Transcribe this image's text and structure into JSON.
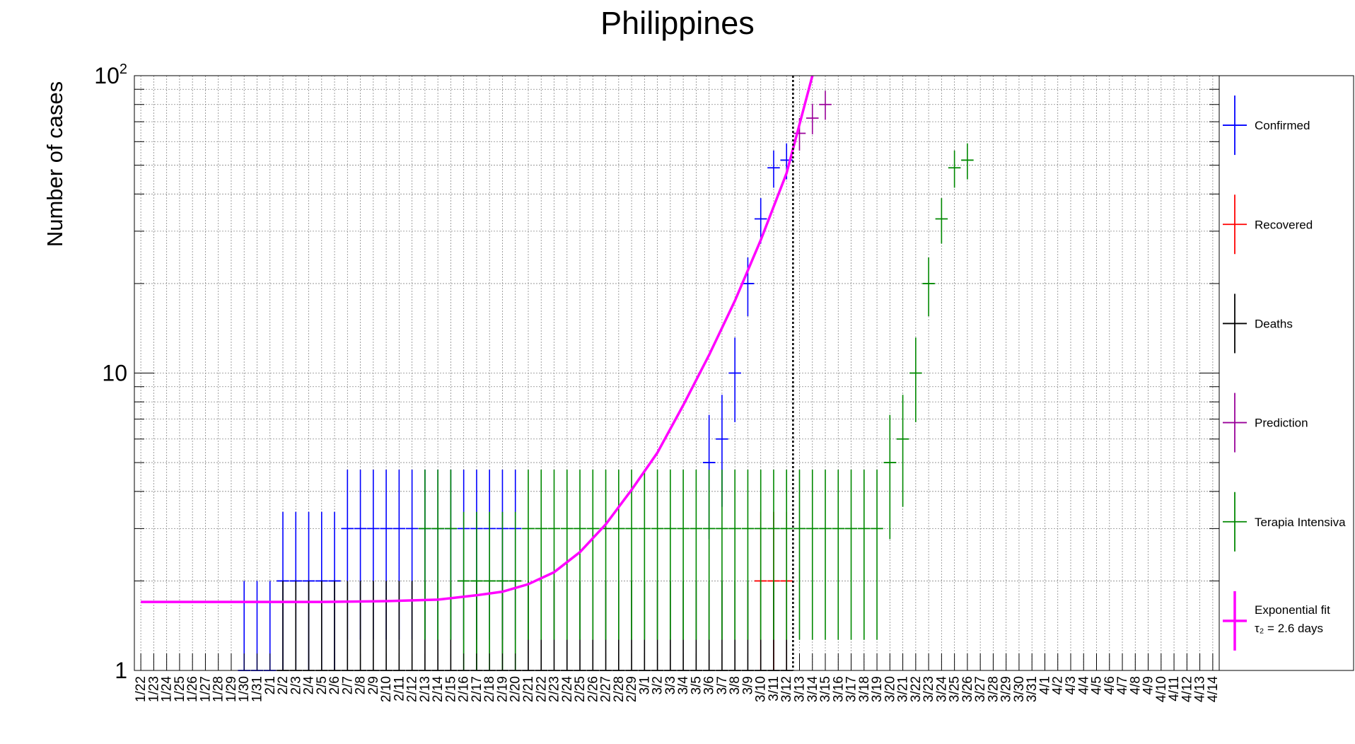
{
  "chart_data": {
    "type": "scatter",
    "title": "Philippines",
    "xlabel": "",
    "ylabel": "Number of cases",
    "yscale": "log",
    "ylim": [
      1,
      100
    ],
    "ytick_labels": [
      {
        "value": 1,
        "base": "1",
        "exp": ""
      },
      {
        "value": 10,
        "base": "10",
        "exp": ""
      },
      {
        "value": 100,
        "base": "10",
        "exp": "2"
      }
    ],
    "grid": true,
    "legend_placement": "right",
    "categories": [
      "1/22",
      "1/23",
      "1/24",
      "1/25",
      "1/26",
      "1/27",
      "1/28",
      "1/29",
      "1/30",
      "1/31",
      "2/1",
      "2/2",
      "2/3",
      "2/4",
      "2/5",
      "2/6",
      "2/7",
      "2/8",
      "2/9",
      "2/10",
      "2/11",
      "2/12",
      "2/13",
      "2/14",
      "2/15",
      "2/16",
      "2/17",
      "2/18",
      "2/19",
      "2/20",
      "2/21",
      "2/22",
      "2/23",
      "2/24",
      "2/25",
      "2/26",
      "2/27",
      "2/28",
      "2/29",
      "3/1",
      "3/2",
      "3/3",
      "3/4",
      "3/5",
      "3/6",
      "3/7",
      "3/8",
      "3/9",
      "3/10",
      "3/11",
      "3/12",
      "3/13",
      "3/14",
      "3/15",
      "3/16",
      "3/17",
      "3/18",
      "3/19",
      "3/20",
      "3/21",
      "3/22",
      "3/23",
      "3/24",
      "3/25",
      "3/26",
      "3/27",
      "3/28",
      "3/29",
      "3/30",
      "3/31",
      "4/1",
      "4/2",
      "4/3",
      "4/4",
      "4/5",
      "4/6",
      "4/7",
      "4/8",
      "4/9",
      "4/10",
      "4/11",
      "4/12",
      "4/13",
      "4/14"
    ],
    "vline": "3/12",
    "series": [
      {
        "name": "Confirmed",
        "color": "#0000ff",
        "x": [
          "1/30",
          "1/31",
          "2/1",
          "2/2",
          "2/3",
          "2/4",
          "2/5",
          "2/6",
          "2/7",
          "2/8",
          "2/9",
          "2/10",
          "2/11",
          "2/12",
          "2/13",
          "2/14",
          "2/15",
          "2/16",
          "2/17",
          "2/18",
          "2/19",
          "2/20",
          "3/6",
          "3/7",
          "3/8",
          "3/9",
          "3/10",
          "3/11",
          "3/12"
        ],
        "y": [
          1,
          1,
          1,
          2,
          2,
          2,
          2,
          2,
          3,
          3,
          3,
          3,
          3,
          3,
          3,
          3,
          3,
          3,
          3,
          3,
          3,
          3,
          5,
          6,
          10,
          20,
          33,
          49,
          52
        ]
      },
      {
        "name": "Recovered",
        "color": "#ff0000",
        "x": [
          "3/10",
          "3/11",
          "3/12"
        ],
        "y": [
          2,
          2,
          2
        ]
      },
      {
        "name": "Deaths",
        "color": "#000000",
        "x": [
          "1/22",
          "1/23",
          "1/24",
          "1/25",
          "1/26",
          "1/27",
          "1/28",
          "1/29",
          "1/30",
          "1/31",
          "2/1",
          "2/2",
          "2/3",
          "2/4",
          "2/5",
          "2/6",
          "2/7",
          "2/8",
          "2/9",
          "2/10",
          "2/11",
          "2/12",
          "2/13",
          "2/14",
          "2/15",
          "2/16",
          "2/17",
          "2/18",
          "2/19",
          "2/20",
          "2/21",
          "2/22",
          "2/23",
          "2/24",
          "2/25",
          "2/26",
          "2/27",
          "2/28",
          "2/29",
          "3/1",
          "3/2",
          "3/3",
          "3/4",
          "3/5",
          "3/6",
          "3/7",
          "3/8",
          "3/9",
          "3/10",
          "3/11",
          "3/12"
        ],
        "y": [
          0,
          0,
          0,
          0,
          0,
          0,
          0,
          0,
          0,
          0,
          0,
          1,
          1,
          1,
          1,
          1,
          1,
          1,
          1,
          1,
          1,
          1,
          1,
          1,
          1,
          1,
          1,
          1,
          1,
          1,
          1,
          1,
          1,
          1,
          1,
          1,
          1,
          1,
          1,
          1,
          1,
          1,
          1,
          1,
          1,
          1,
          1,
          1,
          1,
          1,
          1
        ]
      },
      {
        "name": "Prediction",
        "color": "#990099",
        "x": [
          "3/13",
          "3/14",
          "3/15"
        ],
        "y": [
          64,
          72,
          80
        ]
      },
      {
        "name": "Terapia Intensiva",
        "color": "#008800",
        "x": [
          "2/13",
          "2/14",
          "2/15",
          "2/16",
          "2/17",
          "2/18",
          "2/19",
          "2/20",
          "2/21",
          "2/22",
          "2/23",
          "2/24",
          "2/25",
          "2/26",
          "2/27",
          "2/28",
          "2/29",
          "3/1",
          "3/2",
          "3/3",
          "3/4",
          "3/5",
          "3/6",
          "3/7",
          "3/8",
          "3/9",
          "3/10",
          "3/11",
          "3/12",
          "3/13",
          "3/14",
          "3/15",
          "3/16",
          "3/17",
          "3/18",
          "3/19",
          "3/20",
          "3/21",
          "3/22",
          "3/23",
          "3/24",
          "3/25",
          "3/26"
        ],
        "y": [
          3,
          3,
          3,
          2,
          2,
          2,
          2,
          2,
          3,
          3,
          3,
          3,
          3,
          3,
          3,
          3,
          3,
          3,
          3,
          3,
          3,
          3,
          3,
          3,
          3,
          3,
          3,
          3,
          3,
          3,
          3,
          3,
          3,
          3,
          3,
          3,
          5,
          6,
          10,
          20,
          33,
          49,
          52
        ]
      },
      {
        "name": "Exponential fit",
        "name_line2": "τ₂ = 2.6 days",
        "color": "#ff00ff",
        "type": "line",
        "x": [
          "1/22",
          "1/29",
          "2/5",
          "2/10",
          "2/14",
          "2/17",
          "2/19",
          "2/21",
          "2/23",
          "2/25",
          "2/27",
          "2/29",
          "3/2",
          "3/4",
          "3/6",
          "3/8",
          "3/10",
          "3/12",
          "3/14"
        ],
        "y": [
          1.7,
          1.7,
          1.7,
          1.71,
          1.73,
          1.79,
          1.84,
          1.95,
          2.14,
          2.5,
          3.1,
          4.05,
          5.4,
          7.8,
          11.5,
          17.5,
          28,
          47,
          100
        ]
      }
    ]
  }
}
